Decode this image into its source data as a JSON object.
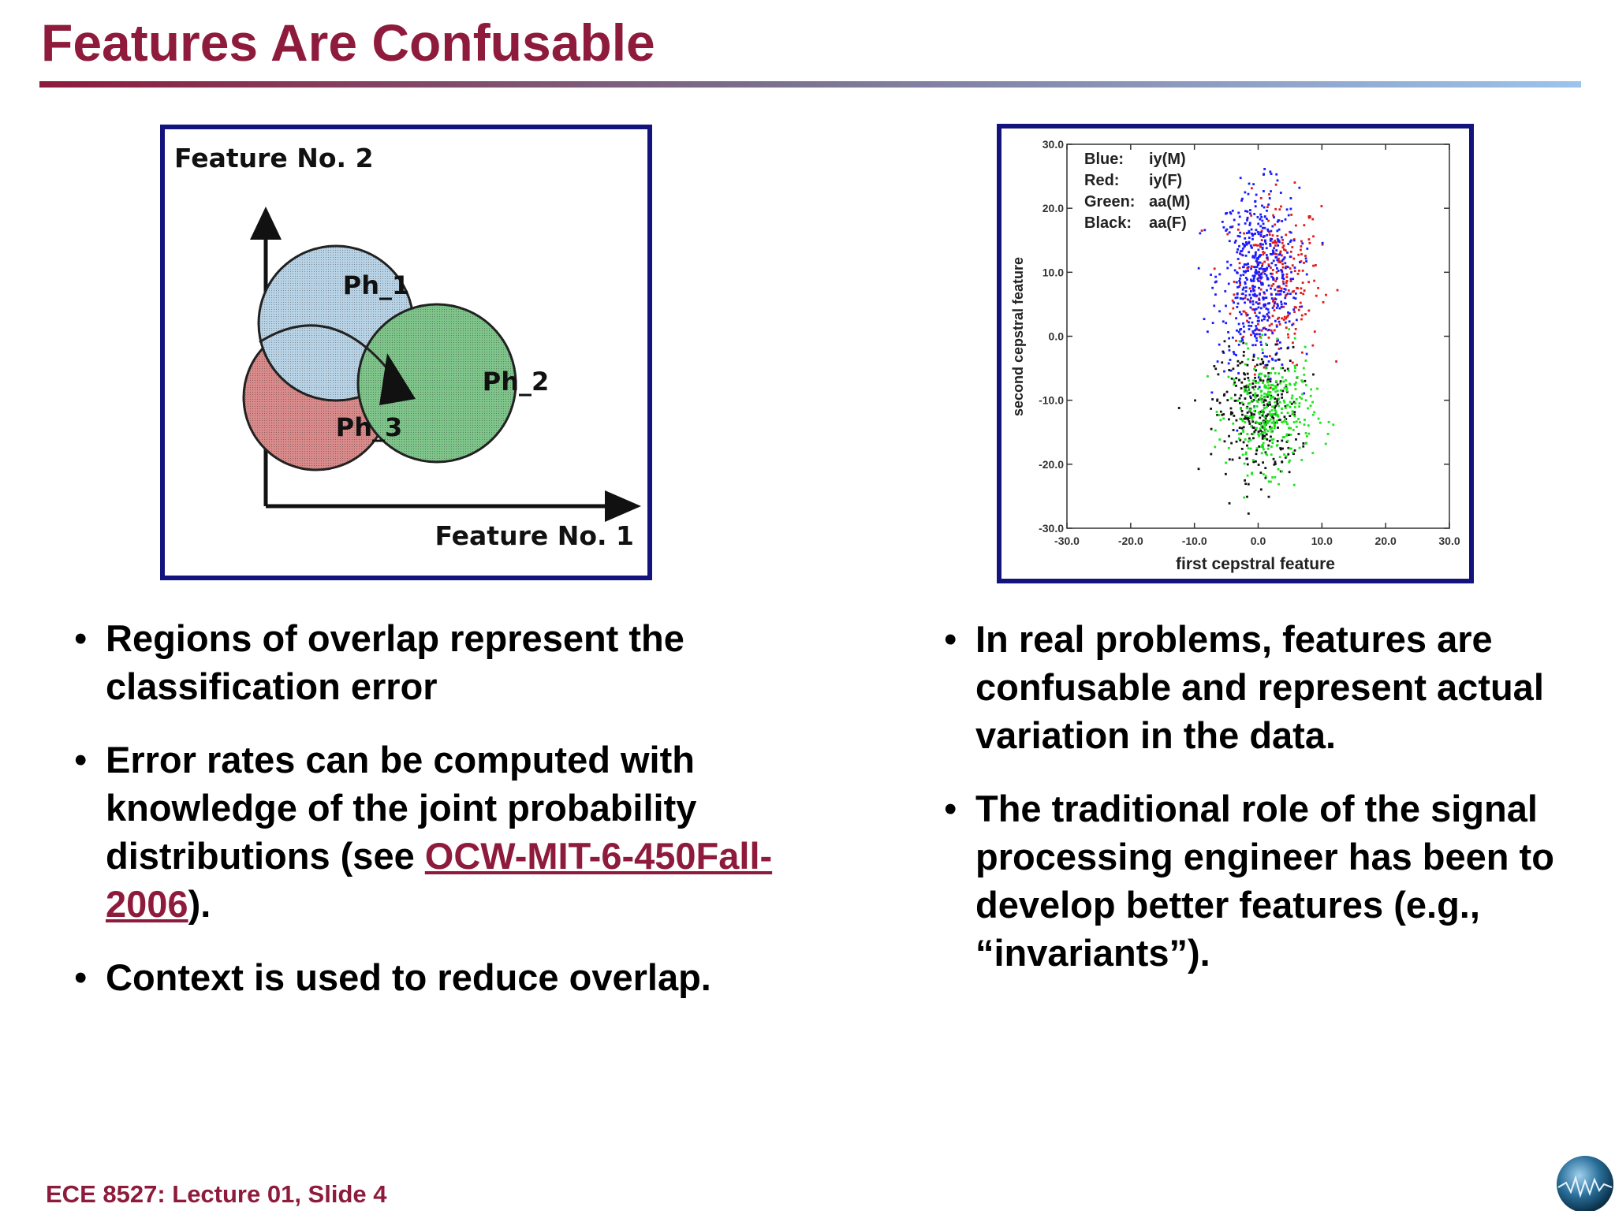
{
  "slide": {
    "title": "Features Are Confusable",
    "footer": "ECE 8527: Lecture 01, Slide 4"
  },
  "colors": {
    "title": "#8e1b3c",
    "frame": "#13137e",
    "ph1": "#b9d3e6",
    "ph2": "#7fc48a",
    "ph3": "#d98b8b"
  },
  "venn": {
    "y_axis_label": "Feature No. 2",
    "x_axis_label": "Feature No. 1",
    "regions": [
      {
        "label": "Ph_1",
        "color": "#b9d3e6"
      },
      {
        "label": "Ph_2",
        "color": "#7fc48a"
      },
      {
        "label": "Ph_3",
        "color": "#d98b8b"
      }
    ]
  },
  "chart_data": {
    "type": "scatter",
    "xlabel": "first cepstral feature",
    "ylabel": "second cepstral feature",
    "xlim": [
      -30,
      30
    ],
    "ylim": [
      -30,
      30
    ],
    "x_ticks": [
      "-30.0",
      "-20.0",
      "-10.0",
      "0.0",
      "10.0",
      "20.0",
      "30.0"
    ],
    "y_ticks": [
      "30.0",
      "20.0",
      "10.0",
      "0.0",
      "-10.0",
      "-20.0",
      "-30.0"
    ],
    "legend_placement": "top-left",
    "legend": [
      {
        "key": "Blue:",
        "value": "iy(M)",
        "color": "#1a1aff"
      },
      {
        "key": "Red:",
        "value": "iy(F)",
        "color": "#e01b1b"
      },
      {
        "key": "Green:",
        "value": "aa(M)",
        "color": "#19e619"
      },
      {
        "key": "Black:",
        "value": "aa(F)",
        "color": "#111111"
      }
    ],
    "series": [
      {
        "name": "iy(M)",
        "color": "#1a1aff",
        "center": [
          0,
          9
        ],
        "spread": [
          3.2,
          7
        ]
      },
      {
        "name": "iy(F)",
        "color": "#e01b1b",
        "center": [
          3,
          9
        ],
        "spread": [
          3.4,
          6.5
        ]
      },
      {
        "name": "aa(M)",
        "color": "#19e619",
        "center": [
          2,
          -12
        ],
        "spread": [
          3.3,
          4.5
        ]
      },
      {
        "name": "aa(F)",
        "color": "#111111",
        "center": [
          0,
          -12
        ],
        "spread": [
          3.3,
          5
        ]
      }
    ]
  },
  "left_bullets": [
    {
      "text": "Regions of overlap represent the classification error"
    },
    {
      "text_before": "Error rates can be computed with knowledge of the joint probability distributions (see ",
      "link": "OCW-MIT-6-450Fall-2006",
      "text_after": ")."
    },
    {
      "text": "Context is used to reduce overlap."
    }
  ],
  "right_bullets": [
    {
      "text": "In real problems, features are confusable and represent actual variation in the data."
    },
    {
      "text": "The traditional role of the signal processing engineer has been to develop better features (e.g., “invariants”)."
    }
  ]
}
